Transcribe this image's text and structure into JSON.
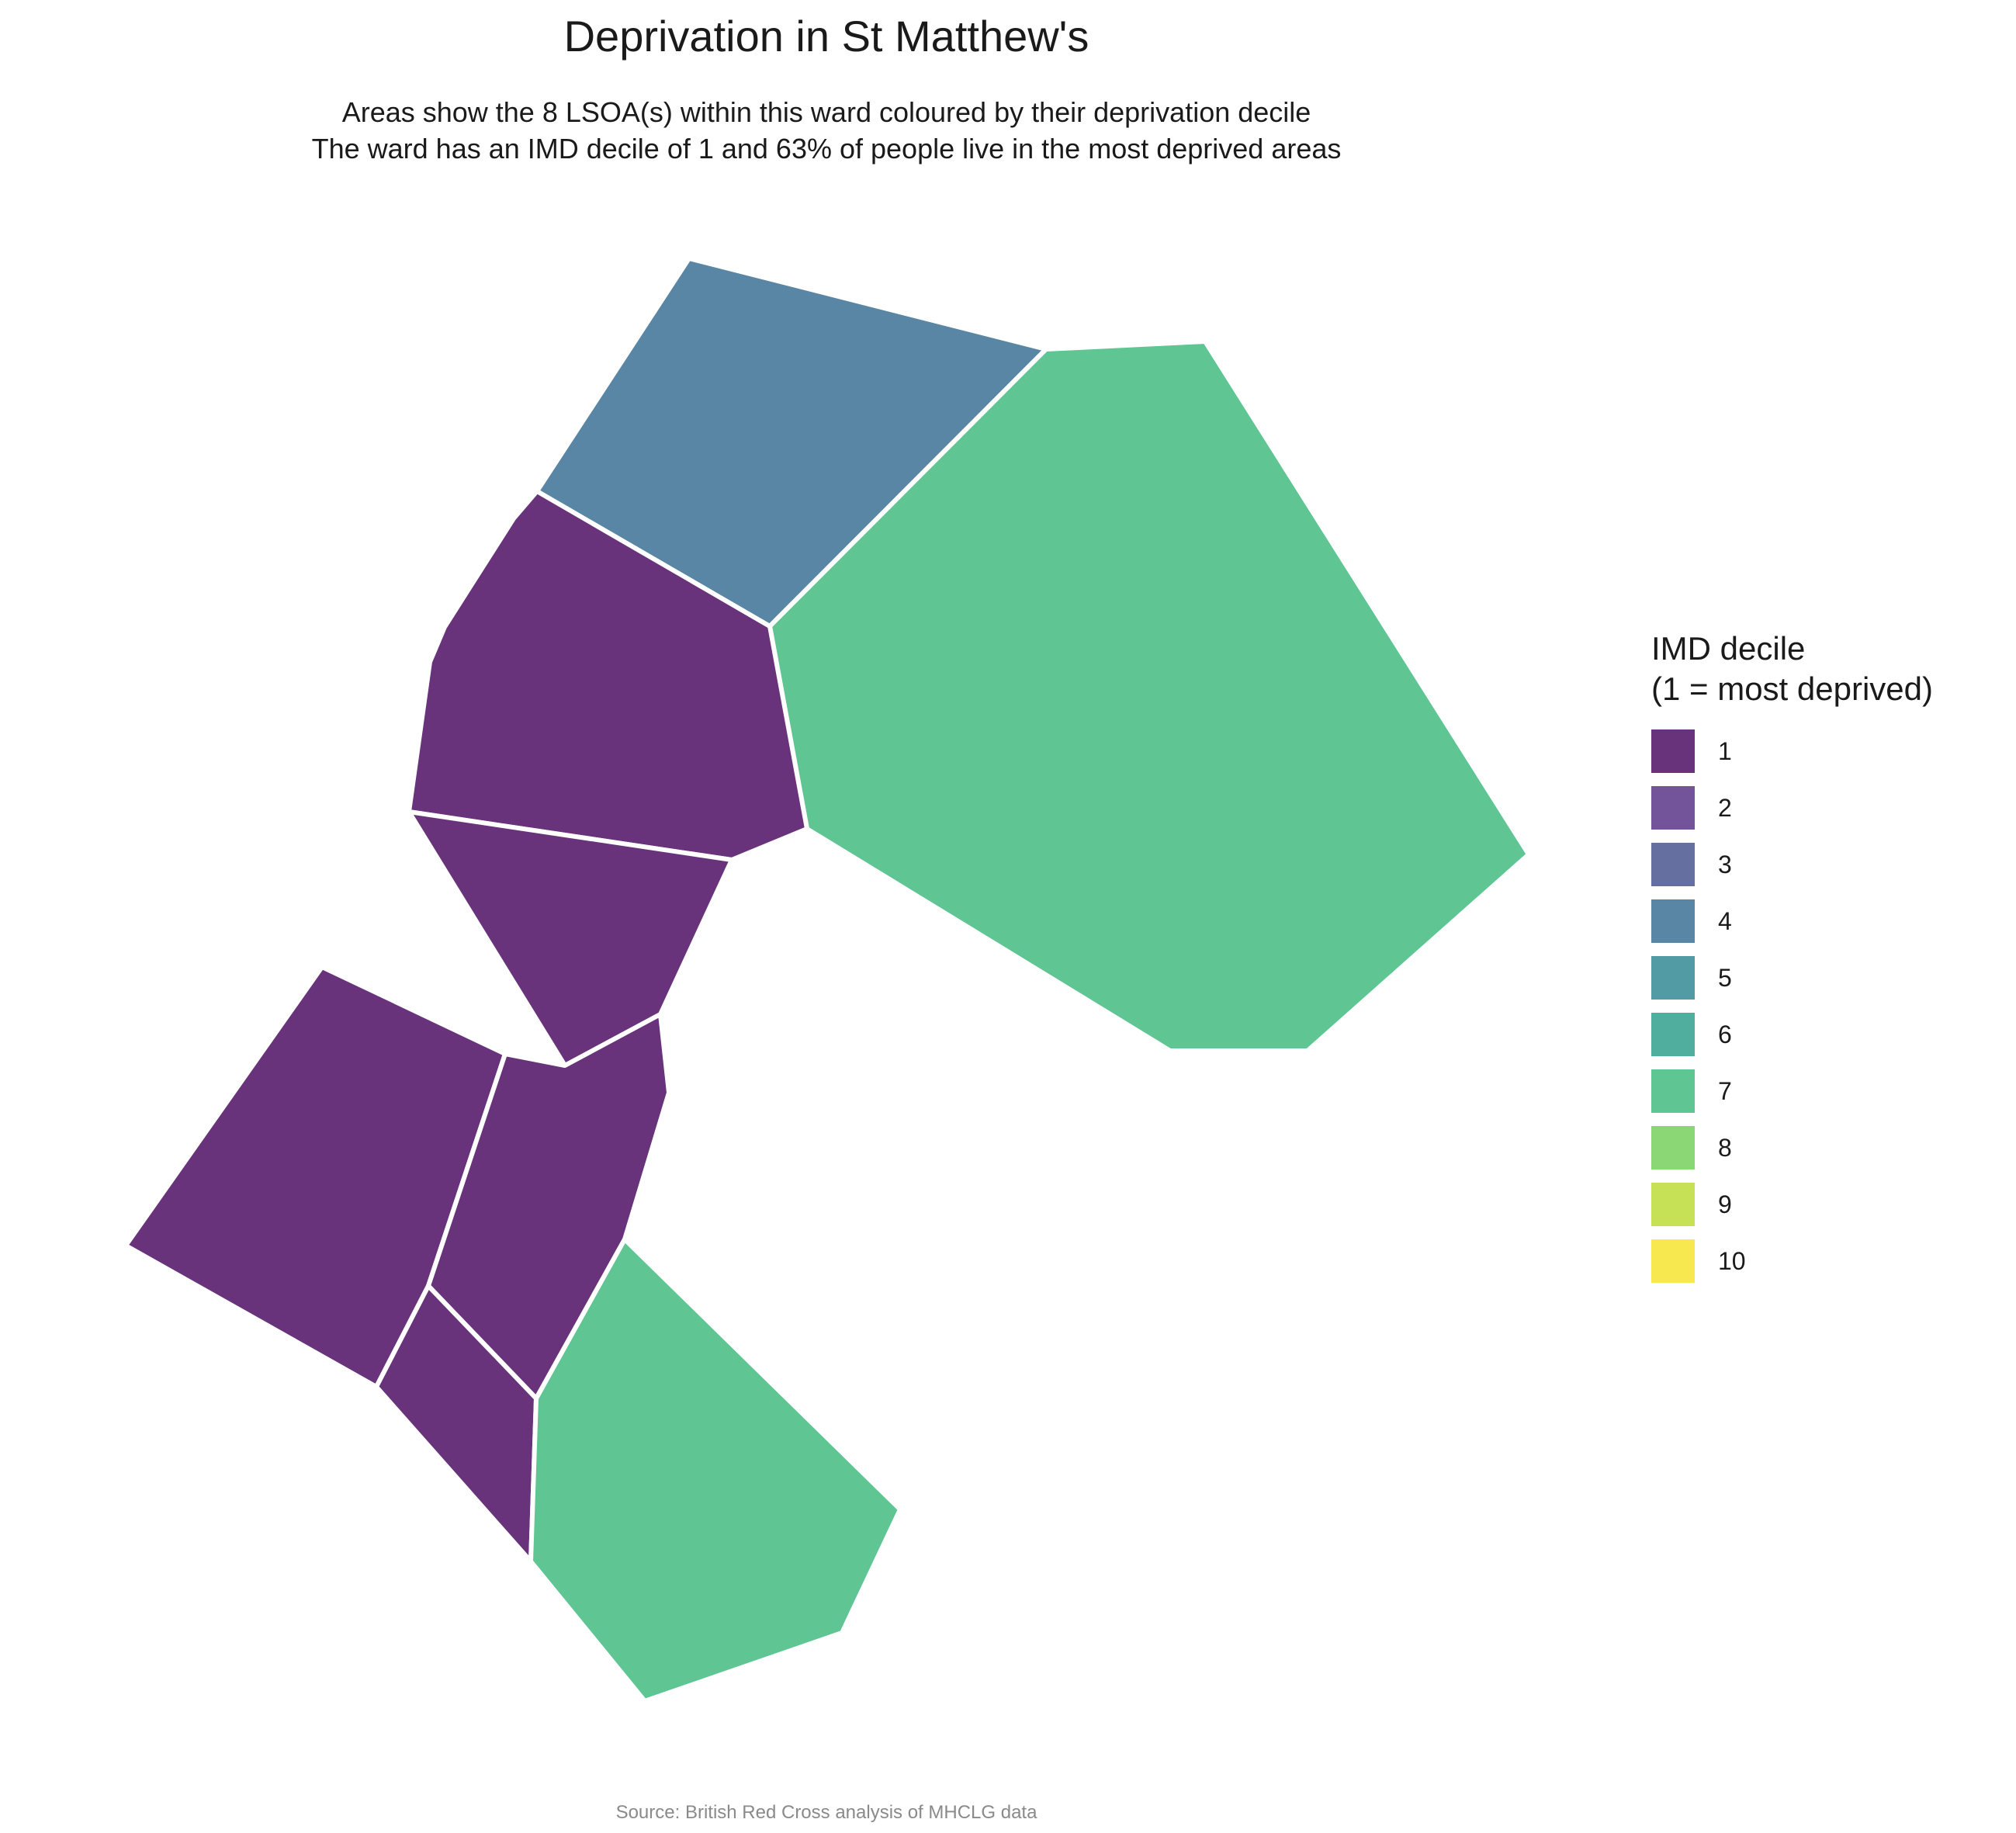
{
  "title": "Deprivation in St Matthew's",
  "subtitle_lines": [
    "Areas show the 8 LSOA(s) within this ward coloured by their deprivation decile",
    "The ward has an IMD decile of 1 and 63% of people live in the most deprived areas"
  ],
  "legend": {
    "title_lines": [
      "IMD decile",
      "(1 = most deprived)"
    ],
    "items": [
      {
        "label": "1",
        "color": "#68337a"
      },
      {
        "label": "2",
        "color": "#73549b"
      },
      {
        "label": "3",
        "color": "#6570a0"
      },
      {
        "label": "4",
        "color": "#5986a4"
      },
      {
        "label": "5",
        "color": "#529ba4"
      },
      {
        "label": "6",
        "color": "#4fae9e"
      },
      {
        "label": "7",
        "color": "#5ec593"
      },
      {
        "label": "8",
        "color": "#8cd775"
      },
      {
        "label": "9",
        "color": "#c6e155"
      },
      {
        "label": "10",
        "color": "#f8e850"
      }
    ]
  },
  "map_areas": [
    {
      "decile": 4
    },
    {
      "decile": 7
    },
    {
      "decile": 1
    },
    {
      "decile": 1
    },
    {
      "decile": 1
    },
    {
      "decile": 1
    },
    {
      "decile": 1
    },
    {
      "decile": 7
    }
  ],
  "source": "Source: British Red Cross analysis of MHCLG data"
}
